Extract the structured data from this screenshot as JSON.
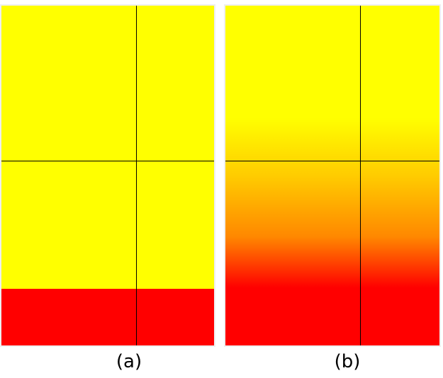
{
  "panels": [
    {
      "id": "a",
      "caption": "(a)",
      "colors": [
        "#ffff00",
        "#ff0000"
      ],
      "fill": "hard-edge"
    },
    {
      "id": "b",
      "caption": "(b)",
      "colors": [
        "#ffff00",
        "#ff8800",
        "#ff0000"
      ],
      "fill": "smooth-gradient"
    }
  ]
}
